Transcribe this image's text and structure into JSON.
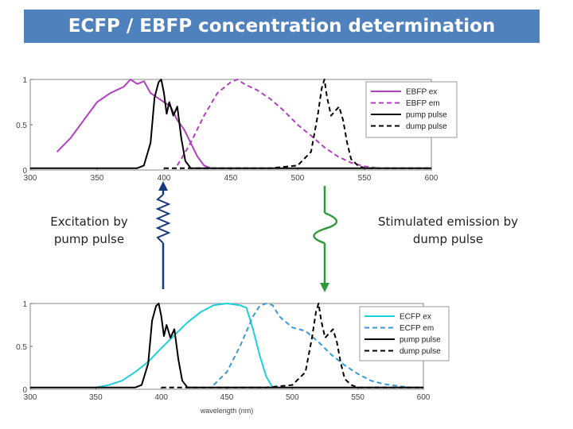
{
  "title": "ECFP / EBFP concentration determination",
  "captions": {
    "left": "Excitation by pump pulse",
    "right": "Stimulated emission by dump pulse"
  },
  "colors": {
    "title_bg": "#4f81bd",
    "ebfp": "#b040c0",
    "ecfp": "#20d0d8",
    "ecfp_em": "#3a9ad8",
    "pulse": "#000000",
    "wavy_arrow": "#1a3a7a",
    "green_arrow": "#2e9a3c"
  },
  "chart_data": [
    {
      "type": "line",
      "xlim": [
        300,
        600
      ],
      "ylim": [
        0,
        1
      ],
      "xticks": [
        "300",
        "350",
        "400",
        "450",
        "500",
        "550",
        "600"
      ],
      "yticks": [
        "0",
        "0.5",
        "1"
      ],
      "xlabel": "",
      "legend_position": "top-right",
      "series": [
        {
          "name": "EBFP ex",
          "style": "solid",
          "color": "#b040c0",
          "x": [
            320,
            330,
            340,
            350,
            360,
            370,
            375,
            380,
            385,
            390,
            395,
            400,
            405,
            410,
            415,
            420,
            425,
            430,
            435
          ],
          "y": [
            0.2,
            0.35,
            0.55,
            0.75,
            0.85,
            0.92,
            1.0,
            0.95,
            0.98,
            0.85,
            0.8,
            0.75,
            0.7,
            0.55,
            0.45,
            0.3,
            0.15,
            0.05,
            0.02
          ]
        },
        {
          "name": "EBFP em",
          "style": "dashed",
          "color": "#b040c0",
          "x": [
            410,
            420,
            430,
            440,
            450,
            455,
            460,
            470,
            480,
            490,
            500,
            510,
            520,
            530,
            540,
            550,
            560
          ],
          "y": [
            0.05,
            0.3,
            0.6,
            0.85,
            0.97,
            1.0,
            0.95,
            0.88,
            0.78,
            0.65,
            0.5,
            0.38,
            0.25,
            0.15,
            0.08,
            0.04,
            0.02
          ]
        },
        {
          "name": "pump pulse",
          "style": "solid",
          "color": "#000000",
          "x": [
            300,
            380,
            385,
            390,
            393,
            396,
            398,
            400,
            402,
            404,
            407,
            410,
            413,
            416,
            420,
            440,
            600
          ],
          "y": [
            0.02,
            0.02,
            0.05,
            0.3,
            0.8,
            0.97,
            1.0,
            0.85,
            0.62,
            0.75,
            0.6,
            0.7,
            0.35,
            0.1,
            0.02,
            0.02,
            0.02
          ]
        },
        {
          "name": "dump pulse",
          "style": "dashed",
          "color": "#000000",
          "x": [
            400,
            440,
            480,
            500,
            510,
            515,
            518,
            520,
            522,
            525,
            528,
            531,
            534,
            537,
            540,
            545,
            550,
            600
          ],
          "y": [
            0.02,
            0.02,
            0.02,
            0.05,
            0.2,
            0.6,
            0.9,
            1.0,
            0.8,
            0.6,
            0.65,
            0.7,
            0.55,
            0.3,
            0.12,
            0.05,
            0.02,
            0.02
          ]
        }
      ]
    },
    {
      "type": "line",
      "xlim": [
        300,
        600
      ],
      "ylim": [
        0,
        1
      ],
      "xticks": [
        "300",
        "350",
        "400",
        "450",
        "500",
        "550",
        "600"
      ],
      "yticks": [
        "0",
        "0.5",
        "1"
      ],
      "xlabel": "wavelength (nm)",
      "legend_position": "top-right",
      "series": [
        {
          "name": "ECFP ex",
          "style": "solid",
          "color": "#20d0d8",
          "x": [
            350,
            360,
            370,
            380,
            390,
            400,
            410,
            420,
            430,
            440,
            450,
            460,
            465,
            470,
            475,
            480,
            485
          ],
          "y": [
            0.02,
            0.05,
            0.1,
            0.2,
            0.32,
            0.48,
            0.63,
            0.78,
            0.9,
            0.98,
            1.0,
            0.98,
            0.95,
            0.7,
            0.4,
            0.15,
            0.02
          ]
        },
        {
          "name": "ECFP em",
          "style": "dashed",
          "color": "#3a9ad8",
          "x": [
            440,
            450,
            460,
            470,
            475,
            480,
            485,
            490,
            500,
            510,
            520,
            530,
            540,
            550,
            560,
            570,
            580,
            590
          ],
          "y": [
            0.05,
            0.2,
            0.5,
            0.85,
            0.97,
            1.0,
            0.98,
            0.85,
            0.72,
            0.68,
            0.55,
            0.4,
            0.28,
            0.18,
            0.1,
            0.06,
            0.04,
            0.02
          ]
        },
        {
          "name": "pump pulse",
          "style": "solid",
          "color": "#000000",
          "x": [
            300,
            380,
            385,
            390,
            393,
            396,
            398,
            400,
            402,
            404,
            407,
            410,
            413,
            416,
            420,
            440,
            600
          ],
          "y": [
            0.02,
            0.02,
            0.05,
            0.3,
            0.8,
            0.97,
            1.0,
            0.85,
            0.62,
            0.75,
            0.6,
            0.7,
            0.35,
            0.1,
            0.02,
            0.02,
            0.02
          ]
        },
        {
          "name": "dump pulse",
          "style": "dashed",
          "color": "#000000",
          "x": [
            400,
            440,
            480,
            500,
            510,
            515,
            518,
            520,
            522,
            525,
            528,
            531,
            534,
            537,
            540,
            545,
            550,
            600
          ],
          "y": [
            0.02,
            0.02,
            0.02,
            0.05,
            0.2,
            0.6,
            0.9,
            1.0,
            0.8,
            0.6,
            0.65,
            0.7,
            0.55,
            0.3,
            0.12,
            0.05,
            0.02,
            0.02
          ]
        }
      ]
    }
  ]
}
